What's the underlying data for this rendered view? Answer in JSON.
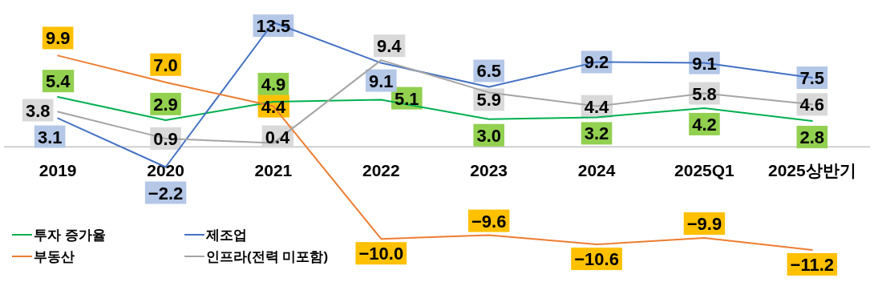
{
  "chart_data": {
    "type": "line",
    "categories": [
      "2019",
      "2020",
      "2021",
      "2022",
      "2023",
      "2024",
      "2025Q1",
      "2025상반기"
    ],
    "series": [
      {
        "name": "투자 증가율",
        "color": "#00b050",
        "values": [
          5.4,
          2.9,
          4.9,
          5.1,
          3.0,
          3.2,
          4.2,
          2.8
        ],
        "value_labels": [
          "5.4",
          "2.9",
          "4.9",
          "5.1",
          "3.0",
          "3.2",
          "4.2",
          "2.8"
        ]
      },
      {
        "name": "제조업",
        "color": "#4472c4",
        "values": [
          3.1,
          -2.2,
          13.5,
          9.1,
          6.5,
          9.2,
          9.1,
          7.5
        ],
        "value_labels": [
          "3.1",
          "−2.2",
          "13.5",
          "9.1",
          "6.5",
          "9.2",
          "9.1",
          "7.5"
        ]
      },
      {
        "name": "부동산",
        "color": "#ed7d31",
        "values": [
          9.9,
          7.0,
          4.4,
          -10.0,
          -9.6,
          -10.6,
          -9.9,
          -11.2
        ],
        "value_labels": [
          "9.9",
          "7.0",
          "4.4",
          "−10.0",
          "−9.6",
          "−10.6",
          "−9.9",
          "−11.2"
        ]
      },
      {
        "name": "인프라(전력 미포함)",
        "color": "#a5a5a5",
        "values": [
          3.8,
          0.9,
          0.4,
          9.4,
          5.9,
          4.4,
          5.8,
          4.6
        ],
        "value_labels": [
          "3.8",
          "0.9",
          "0.4",
          "9.4",
          "5.9",
          "4.4",
          "5.8",
          "4.6"
        ]
      }
    ],
    "legend": "bottom left",
    "grid": false,
    "line_style": "solid"
  }
}
